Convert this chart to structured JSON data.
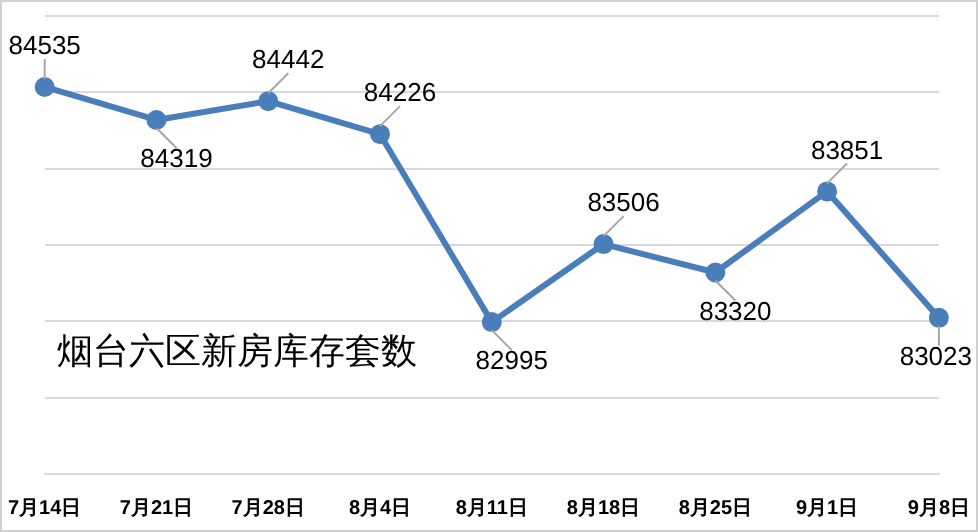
{
  "chart_data": {
    "type": "line",
    "categories": [
      "7月14日",
      "7月21日",
      "7月28日",
      "8月4日",
      "8月11日",
      "8月18日",
      "8月25日",
      "9月1日",
      "9月8日"
    ],
    "series": [
      {
        "color": "#4a7ebb",
        "values": [
          84535,
          84319,
          84442,
          84226,
          82995,
          83506,
          83320,
          83851,
          83023
        ]
      }
    ],
    "ylim": [
      82000,
      85000
    ],
    "yticks": [
      {
        "value": 82000,
        "label": null
      },
      {
        "value": 82500,
        "label": null
      },
      {
        "value": 83000,
        "label": null
      },
      {
        "value": 83500,
        "label": null
      },
      {
        "value": 84000,
        "label": null
      },
      {
        "value": 84500,
        "label": null
      },
      {
        "value": 85000,
        "label": null
      }
    ],
    "tick_labels": "x",
    "grid": "y",
    "legend": false,
    "marker": "circle",
    "line_style": "solid",
    "data_labels": true,
    "annotations": [
      {
        "text": "烟台六区新房库存套数"
      }
    ]
  }
}
